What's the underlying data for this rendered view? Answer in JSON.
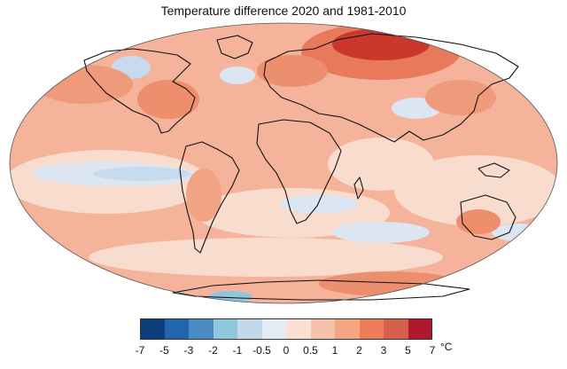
{
  "title": "Temperature difference 2020 and 1981-2010",
  "legend": {
    "unit": "°C",
    "colors": [
      "#0d3d7a",
      "#2166ac",
      "#4a8bc4",
      "#92c5de",
      "#c2d9ec",
      "#e3ecf5",
      "#f9e0d2",
      "#f7c2aa",
      "#f4a582",
      "#ec7c58",
      "#d6604d",
      "#b2182b"
    ],
    "ticks": [
      "-7",
      "-5",
      "-3",
      "-2",
      "-1",
      "-0.5",
      "0",
      "0.5",
      "1",
      "2",
      "3",
      "5",
      "7"
    ]
  },
  "map": {
    "projection": "Robinson",
    "base_color": "#f4b39a",
    "ocean_neutral": "#f8dccd",
    "coastline_color": "#111111"
  }
}
